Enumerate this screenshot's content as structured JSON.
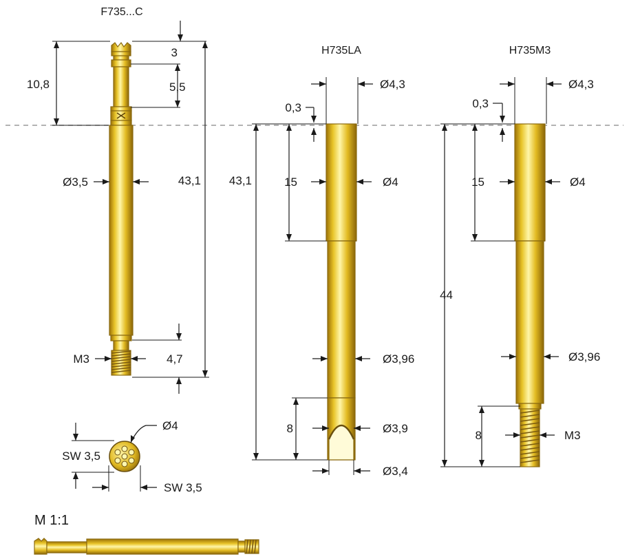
{
  "titles": {
    "f735": "F735...C",
    "h735la": "H735LA",
    "h735m3": "H735M3",
    "scale": "M 1:1"
  },
  "f735_dims": {
    "overall": "10,8",
    "tip": "3",
    "groove": "5,5",
    "length": "43,1",
    "diameter": "Ø3,5",
    "thread": "M3",
    "thread_len": "4,7"
  },
  "section_dims": {
    "diameter": "Ø4",
    "sw_vertical": "SW 3,5",
    "sw_horizontal": "SW 3,5"
  },
  "h735la_dims": {
    "flange": "Ø4,3",
    "offset": "0,3",
    "length": "43,1",
    "upper": "15",
    "upper_dia": "Ø4",
    "lower_dia": "Ø3,96",
    "slot": "8",
    "slot_dia": "Ø3,9",
    "bottom_dia": "Ø3,4"
  },
  "h735m3_dims": {
    "flange": "Ø4,3",
    "offset": "0,3",
    "upper": "15",
    "length": "44",
    "upper_dia": "Ø4",
    "lower_dia": "Ø3,96",
    "thread_len": "8",
    "thread": "M3"
  },
  "colors": {
    "gold_light": "#fff29a",
    "gold_mid": "#e8c020",
    "gold_dark": "#8a6508",
    "line": "#1a1a1a",
    "reference_line": "#9a9a9a"
  }
}
